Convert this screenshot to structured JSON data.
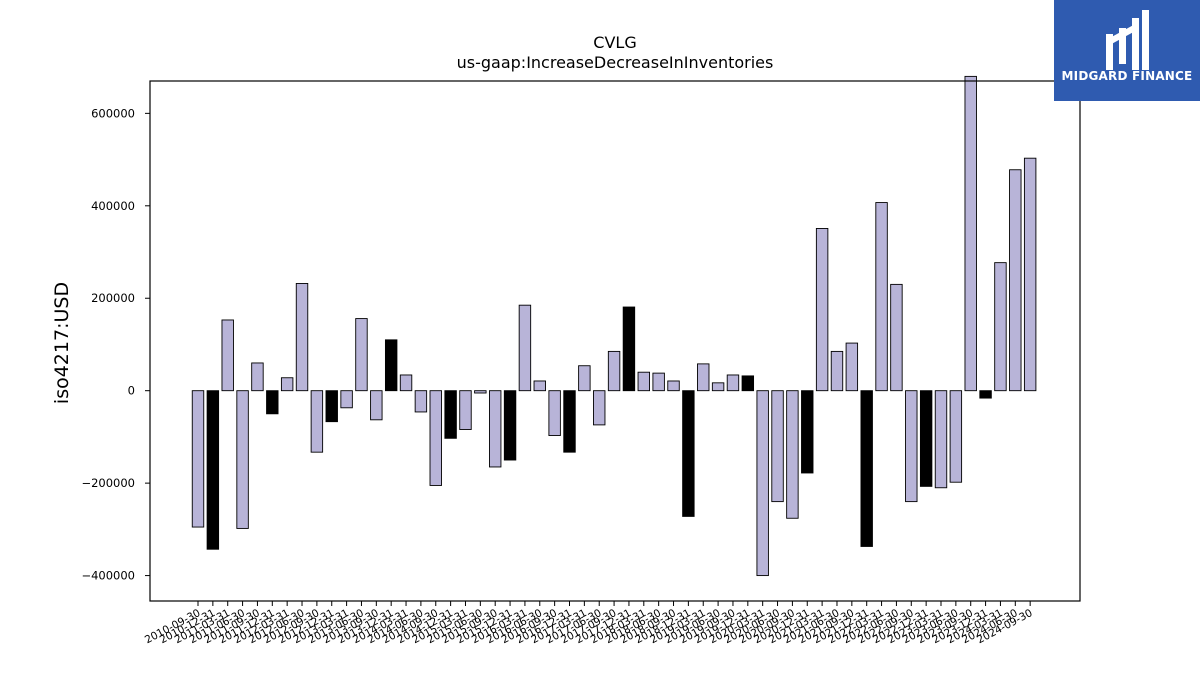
{
  "chart_data": {
    "type": "bar",
    "title": "CVLG",
    "subtitle": "us-gaap:IncreaseDecreaseInInventories",
    "xlabel": "",
    "ylabel": "iso4217:USD",
    "ylim": [
      -455000,
      670000
    ],
    "yticks": [
      -400000,
      -200000,
      0,
      200000,
      400000,
      600000
    ],
    "ytick_labels": [
      "−400000",
      "−200000",
      "0",
      "200000",
      "400000",
      "600000"
    ],
    "grid": false,
    "colors": {
      "default": "#b8b4d8",
      "highlight": "#000000",
      "edge": "#000000"
    },
    "categories": [
      "2010-09-30",
      "2010-12-31",
      "2011-03-31",
      "2011-06-30",
      "2011-09-30",
      "2011-12-31",
      "2012-03-31",
      "2012-06-30",
      "2012-09-30",
      "2012-12-31",
      "2013-03-31",
      "2013-06-30",
      "2013-09-30",
      "2013-12-31",
      "2014-03-31",
      "2014-06-30",
      "2014-09-30",
      "2014-12-31",
      "2015-03-31",
      "2015-06-30",
      "2015-09-30",
      "2015-12-31",
      "2016-03-31",
      "2016-06-30",
      "2016-09-30",
      "2016-12-31",
      "2017-03-31",
      "2017-06-30",
      "2017-09-30",
      "2017-12-31",
      "2018-03-31",
      "2018-06-30",
      "2018-09-30",
      "2018-12-31",
      "2019-03-31",
      "2019-06-30",
      "2019-09-30",
      "2019-12-31",
      "2020-03-31",
      "2020-06-30",
      "2020-09-30",
      "2020-12-31",
      "2021-03-31",
      "2021-06-30",
      "2021-09-30",
      "2021-12-31",
      "2022-03-31",
      "2022-06-30",
      "2022-09-30",
      "2022-12-31",
      "2023-03-31",
      "2023-06-30",
      "2023-09-30",
      "2023-12-31",
      "2024-03-31",
      "2024-06-30",
      "2024-09-30"
    ],
    "values": [
      -295000,
      -343000,
      153000,
      -298000,
      60000,
      -50000,
      28000,
      232000,
      -133000,
      -67000,
      -37000,
      156000,
      -63000,
      110000,
      34000,
      -46000,
      -205000,
      -103000,
      -84000,
      -5000,
      -165000,
      -150000,
      185000,
      21000,
      -97000,
      -133000,
      54000,
      -74000,
      85000,
      181000,
      40000,
      38000,
      21000,
      -272000,
      58000,
      17000,
      34000,
      32000,
      -400000,
      -240000,
      -276000,
      -178000,
      351000,
      85000,
      103000,
      -337000,
      407000,
      230000,
      -240000,
      -207000,
      -210000,
      -198000,
      680000,
      -16000,
      277000,
      478000,
      503000
    ],
    "highlight": [
      false,
      true,
      false,
      false,
      false,
      true,
      false,
      false,
      false,
      true,
      false,
      false,
      false,
      true,
      false,
      false,
      false,
      true,
      false,
      false,
      false,
      true,
      false,
      false,
      false,
      true,
      false,
      false,
      false,
      true,
      false,
      false,
      false,
      true,
      false,
      false,
      false,
      true,
      false,
      false,
      false,
      true,
      false,
      false,
      false,
      true,
      false,
      false,
      false,
      true,
      false,
      false,
      false,
      true,
      false,
      false,
      false
    ]
  },
  "logo": {
    "text": "MIDGARD FINANCE"
  }
}
